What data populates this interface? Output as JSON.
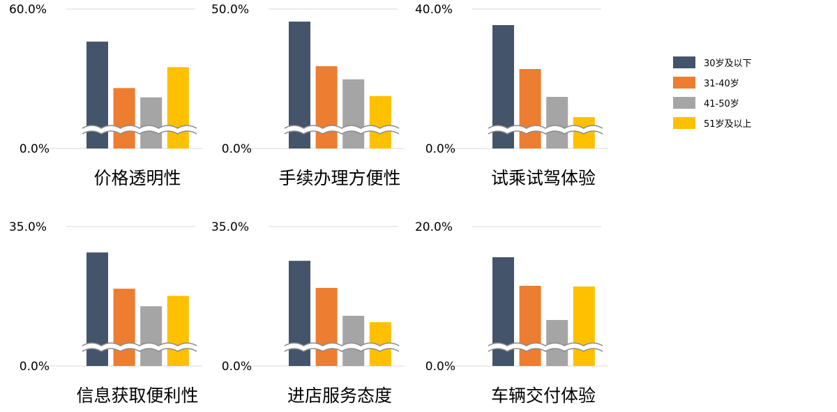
{
  "legend": {
    "items": [
      {
        "label": "30岁及以下",
        "color": "#44546A"
      },
      {
        "label": "31-40岁",
        "color": "#ED7D31"
      },
      {
        "label": "41-50岁",
        "color": "#A5A5A5"
      },
      {
        "label": "51岁及以上",
        "color": "#FFC000"
      }
    ]
  },
  "chart_data": [
    {
      "type": "bar",
      "title": "价格透明性",
      "categories": [
        "30岁及以下",
        "31-40岁",
        "41-50岁",
        "51岁及以上"
      ],
      "values": [
        46,
        26,
        22,
        35
      ],
      "ylim": [
        0,
        60
      ],
      "yticks": [
        "0.0%",
        "60.0%"
      ],
      "axis_break": true,
      "grid": true
    },
    {
      "type": "bar",
      "title": "手续办理方便性",
      "categories": [
        "30岁及以下",
        "31-40岁",
        "41-50岁",
        "51岁及以上"
      ],
      "values": [
        45.5,
        29.5,
        24.8,
        18.8
      ],
      "ylim": [
        0,
        50
      ],
      "yticks": [
        "0.0%",
        "50.0%"
      ],
      "axis_break": true,
      "grid": true
    },
    {
      "type": "bar",
      "title": "试乘试驾体验",
      "categories": [
        "30岁及以下",
        "31-40岁",
        "41-50岁",
        "51岁及以上"
      ],
      "values": [
        35.4,
        22.8,
        14.8,
        9.0
      ],
      "ylim": [
        0,
        40
      ],
      "yticks": [
        "0.0%",
        "40.0%"
      ],
      "axis_break": true,
      "grid": true
    },
    {
      "type": "bar",
      "title": "信息获取便利性",
      "categories": [
        "30岁及以下",
        "31-40岁",
        "41-50岁",
        "51岁及以上"
      ],
      "values": [
        28.5,
        19.4,
        15.0,
        17.6
      ],
      "ylim": [
        0,
        35
      ],
      "yticks": [
        "0.0%",
        "35.0%"
      ],
      "axis_break": true,
      "grid": true
    },
    {
      "type": "bar",
      "title": "进店服务态度",
      "categories": [
        "30岁及以下",
        "31-40岁",
        "41-50岁",
        "51岁及以上"
      ],
      "values": [
        26.4,
        19.6,
        12.6,
        11.0
      ],
      "ylim": [
        0,
        35
      ],
      "yticks": [
        "0.0%",
        "35.0%"
      ],
      "axis_break": true,
      "grid": true
    },
    {
      "type": "bar",
      "title": "车辆交付体验",
      "categories": [
        "30岁及以下",
        "31-40岁",
        "41-50岁",
        "51岁及以上"
      ],
      "values": [
        15.6,
        11.5,
        6.6,
        11.4
      ],
      "ylim": [
        0,
        20
      ],
      "yticks": [
        "0.0%",
        "20.0%"
      ],
      "axis_break": true,
      "grid": true
    }
  ]
}
